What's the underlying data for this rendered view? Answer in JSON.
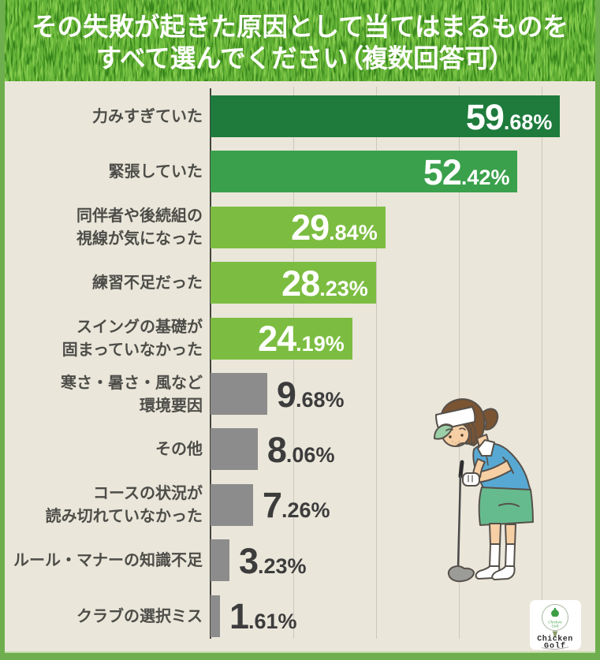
{
  "title": {
    "line1": "その失敗が起きた原因として当てはまるものを",
    "line2": "すべて選んでください（複数回答可）"
  },
  "chart_data": {
    "type": "bar",
    "orientation": "horizontal",
    "title": "その失敗が起きた原因として当てはまるものをすべて選んでください（複数回答可）",
    "xlim": [
      0,
      61.5
    ],
    "grid": true,
    "rows": [
      {
        "label": [
          "力みすぎていた"
        ],
        "value": 59.68,
        "display": "59.68%",
        "color": "dark",
        "value_position": "inside"
      },
      {
        "label": [
          "緊張していた"
        ],
        "value": 52.42,
        "display": "52.42%",
        "color": "mid",
        "value_position": "inside"
      },
      {
        "label": [
          "同伴者や後続組の",
          "視線が気になった"
        ],
        "value": 29.84,
        "display": "29.84%",
        "color": "light",
        "value_position": "inside"
      },
      {
        "label": [
          "練習不足だった"
        ],
        "value": 28.23,
        "display": "28.23%",
        "color": "light",
        "value_position": "inside"
      },
      {
        "label": [
          "スイングの基礎が",
          "固まっていなかった"
        ],
        "value": 24.19,
        "display": "24.19%",
        "color": "light",
        "value_position": "inside"
      },
      {
        "label": [
          "寒さ・暑さ・風など",
          "環境要因"
        ],
        "value": 9.68,
        "display": "9.68%",
        "color": "gray",
        "value_position": "outside"
      },
      {
        "label": [
          "その他"
        ],
        "value": 8.06,
        "display": "8.06%",
        "color": "gray",
        "value_position": "outside"
      },
      {
        "label": [
          "コースの状況が",
          "読み切れていなかった"
        ],
        "value": 7.26,
        "display": "7.26%",
        "color": "gray",
        "value_position": "outside"
      },
      {
        "label": [
          "ルール・マナーの知識不足"
        ],
        "value": 3.23,
        "display": "3.23%",
        "color": "gray",
        "value_position": "outside"
      },
      {
        "label": [
          "クラブの選択ミス"
        ],
        "value": 1.61,
        "display": "1.61%",
        "color": "gray",
        "value_position": "outside"
      }
    ]
  },
  "colors": {
    "dark": "#1e7b3c",
    "mid": "#3aa04b",
    "light": "#7cbd41",
    "gray": "#8c8c8c",
    "background": "#eae6da",
    "border": "#6fae4e",
    "label_text": "#4d4d48",
    "value_text_dark": "#3c3c3c"
  },
  "logo": {
    "ball_text": "Chicken Golf",
    "line1": "Chicken",
    "line2": "Golf"
  }
}
